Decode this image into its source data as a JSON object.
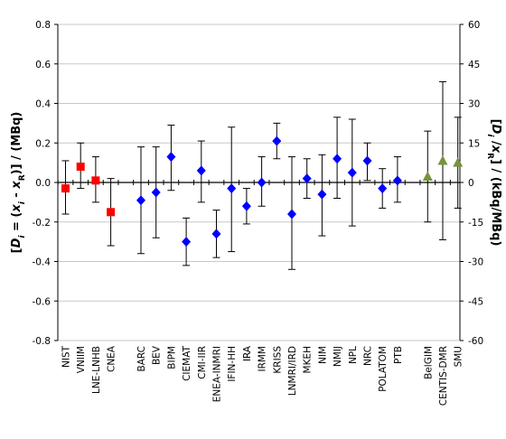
{
  "chart_data": {
    "type": "scatter",
    "y_left": {
      "label_parts": [
        {
          "t": "[",
          "i": false
        },
        {
          "t": "D",
          "i": true
        },
        {
          "t": "i",
          "i": true,
          "sub": true
        },
        {
          "t": " = (",
          "i": false
        },
        {
          "t": "x",
          "i": true
        },
        {
          "t": "i",
          "i": true,
          "sub": true
        },
        {
          "t": " - ",
          "i": false
        },
        {
          "t": "x",
          "i": true
        },
        {
          "t": "R",
          "i": false,
          "sub": true
        },
        {
          "t": ")] / (MBq)",
          "i": false
        }
      ],
      "ylim": [
        -0.8,
        0.8
      ],
      "ticks": [
        "-0.8",
        "-0.6",
        "-0.4",
        "-0.2",
        "0.0",
        "0.2",
        "0.4",
        "0.6",
        "0.8"
      ]
    },
    "y_right": {
      "label_parts": [
        {
          "t": "[",
          "i": false
        },
        {
          "t": "D",
          "i": true
        },
        {
          "t": "i",
          "i": true,
          "sub": true
        },
        {
          "t": " /",
          "i": false
        },
        {
          "t": "x",
          "i": true
        },
        {
          "t": "R",
          "i": false,
          "sub": true
        },
        {
          "t": "] / (kBq/MBq)",
          "i": false
        }
      ],
      "ylim": [
        -60,
        60
      ],
      "ticks": [
        "-60",
        "-45",
        "-30",
        "-15",
        "0",
        "15",
        "30",
        "45",
        "60"
      ]
    },
    "grid": true,
    "colors": {
      "red": "#ff0000",
      "blue": "#0000ff",
      "green": "#77933c",
      "grid": "#c8c8c8",
      "zero_line": "#000000"
    },
    "points": [
      {
        "label": "NIST",
        "y": -0.03,
        "lo": -0.16,
        "hi": 0.11,
        "color": "red",
        "marker": "square"
      },
      {
        "label": "VNIIM",
        "y": 0.08,
        "lo": -0.03,
        "hi": 0.2,
        "color": "red",
        "marker": "square"
      },
      {
        "label": "LNE-LNHB",
        "y": 0.01,
        "lo": -0.1,
        "hi": 0.13,
        "color": "red",
        "marker": "square"
      },
      {
        "label": "CNEA",
        "y": -0.15,
        "lo": -0.32,
        "hi": 0.02,
        "color": "red",
        "marker": "square"
      },
      {
        "label": "",
        "gap": true
      },
      {
        "label": "BARC",
        "y": -0.09,
        "lo": -0.36,
        "hi": 0.18,
        "color": "blue",
        "marker": "diamond"
      },
      {
        "label": "BEV",
        "y": -0.05,
        "lo": -0.28,
        "hi": 0.18,
        "color": "blue",
        "marker": "diamond"
      },
      {
        "label": "BIPM",
        "y": 0.13,
        "lo": -0.04,
        "hi": 0.29,
        "color": "blue",
        "marker": "diamond"
      },
      {
        "label": "CIEMAT",
        "y": -0.3,
        "lo": -0.42,
        "hi": -0.18,
        "color": "blue",
        "marker": "diamond"
      },
      {
        "label": "CMI-IIR",
        "y": 0.06,
        "lo": -0.1,
        "hi": 0.21,
        "color": "blue",
        "marker": "diamond"
      },
      {
        "label": "ENEA-INMRI",
        "y": -0.26,
        "lo": -0.38,
        "hi": -0.14,
        "color": "blue",
        "marker": "diamond"
      },
      {
        "label": "IFIN-HH",
        "y": -0.03,
        "lo": -0.35,
        "hi": 0.28,
        "color": "blue",
        "marker": "diamond"
      },
      {
        "label": "IRA",
        "y": -0.12,
        "lo": -0.21,
        "hi": -0.03,
        "color": "blue",
        "marker": "diamond"
      },
      {
        "label": "IRMM",
        "y": 0.0,
        "lo": -0.12,
        "hi": 0.13,
        "color": "blue",
        "marker": "diamond"
      },
      {
        "label": "KRISS",
        "y": 0.21,
        "lo": 0.12,
        "hi": 0.3,
        "color": "blue",
        "marker": "diamond"
      },
      {
        "label": "LNMRI/IRD",
        "y": -0.16,
        "lo": -0.44,
        "hi": 0.13,
        "color": "blue",
        "marker": "diamond"
      },
      {
        "label": "MKEH",
        "y": 0.02,
        "lo": -0.08,
        "hi": 0.12,
        "color": "blue",
        "marker": "diamond"
      },
      {
        "label": "NIM",
        "y": -0.06,
        "lo": -0.27,
        "hi": 0.14,
        "color": "blue",
        "marker": "diamond"
      },
      {
        "label": "NMIJ",
        "y": 0.12,
        "lo": -0.08,
        "hi": 0.33,
        "color": "blue",
        "marker": "diamond"
      },
      {
        "label": "NPL",
        "y": 0.05,
        "lo": -0.22,
        "hi": 0.32,
        "color": "blue",
        "marker": "diamond"
      },
      {
        "label": "NRC",
        "y": 0.11,
        "lo": 0.01,
        "hi": 0.2,
        "color": "blue",
        "marker": "diamond"
      },
      {
        "label": "POLATOM",
        "y": -0.03,
        "lo": -0.13,
        "hi": 0.07,
        "color": "blue",
        "marker": "diamond"
      },
      {
        "label": "PTB",
        "y": 0.01,
        "lo": -0.1,
        "hi": 0.13,
        "color": "blue",
        "marker": "diamond"
      },
      {
        "label": "",
        "gap": true
      },
      {
        "label": "BelGIM",
        "y": 0.03,
        "lo": -0.2,
        "hi": 0.26,
        "color": "green",
        "marker": "triangle"
      },
      {
        "label": "CENTIS-DMR",
        "y": 0.11,
        "lo": -0.29,
        "hi": 0.51,
        "color": "green",
        "marker": "triangle"
      },
      {
        "label": "SMU",
        "y": 0.1,
        "lo": -0.13,
        "hi": 0.33,
        "color": "green",
        "marker": "triangle"
      }
    ]
  }
}
